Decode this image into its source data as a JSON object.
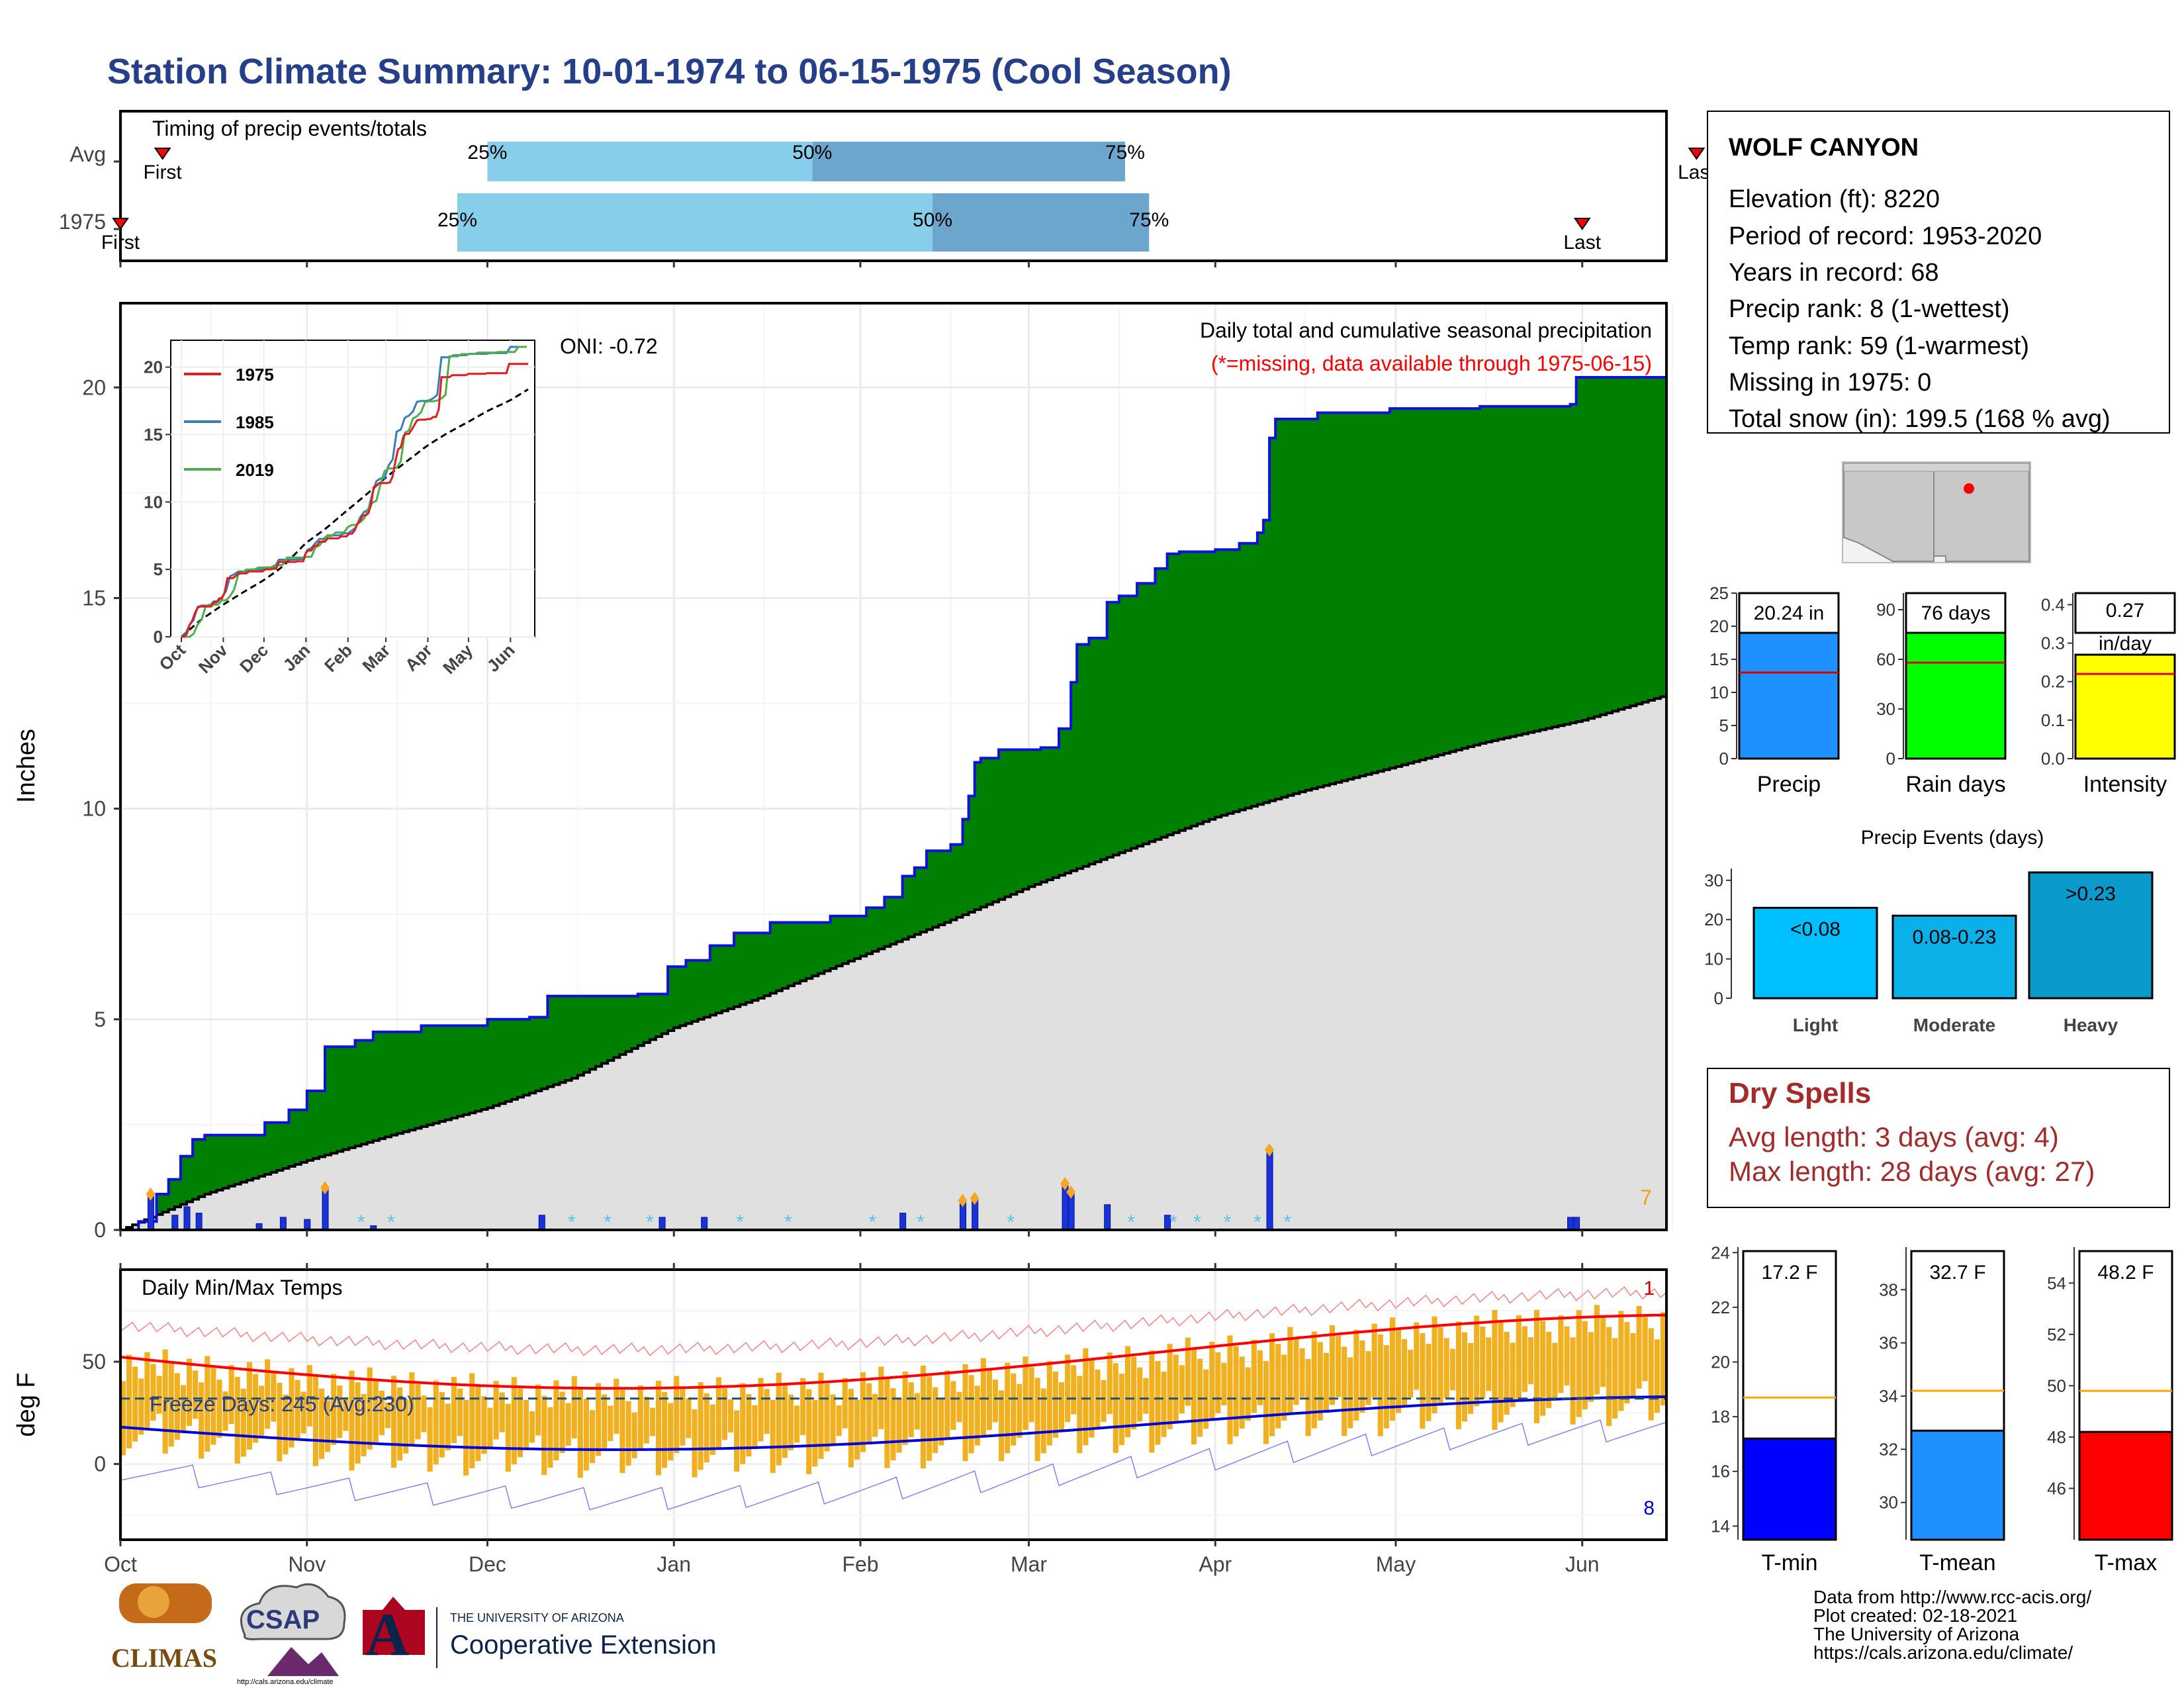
{
  "title": "Station Climate Summary: 10-01-1974 to 06-15-1975 (Cool Season)",
  "timing": {
    "label": "Timing of precip events/totals",
    "rows": [
      {
        "row": "Avg",
        "first": "First",
        "last": "Last",
        "q25": "25%",
        "q50": "50%",
        "q75": "75%",
        "first_date": "1974-10-08",
        "d25": "1974-12-01",
        "d50": "1975-01-24",
        "d75": "1975-03-17",
        "last_date": "1975-06-20"
      },
      {
        "row": "1975",
        "first": "First",
        "last": "Last",
        "q25": "25%",
        "q50": "50%",
        "q75": "75%",
        "first_date": "1974-10-01",
        "d25": "1974-11-26",
        "d50": "1975-02-13",
        "d75": "1975-03-21",
        "last_date": "1975-06-01"
      }
    ]
  },
  "station": {
    "name": "WOLF CANYON",
    "lines": [
      "Elevation (ft): 8220",
      "Period of record: 1953-2020",
      "Years in record: 68",
      "Precip rank: 8 (1-wettest)",
      "Temp rank: 59 (1-warmest)",
      "Missing in 1975: 0",
      "Total snow (in): 199.5 (168 % avg)"
    ]
  },
  "precip_panel": {
    "ylabel": "Inches",
    "oni": "ONI: -0.72",
    "caption": "Daily total and cumulative seasonal precipitation",
    "missing_note": "(*=missing, data available through 1975-06-15)",
    "corner_count": "7",
    "colors": {
      "above_avg": "#008000",
      "outline": "#1010e0",
      "avg_fill": "#e0e0e0",
      "bars": "#1a33d6"
    }
  },
  "inset": {
    "series": [
      {
        "name": "1975",
        "color": "#e41a1c"
      },
      {
        "name": "1985",
        "color": "#377eb8"
      },
      {
        "name": "2019",
        "color": "#4daf4a"
      }
    ],
    "months": [
      "Oct",
      "Nov",
      "Dec",
      "Jan",
      "Feb",
      "Mar",
      "Apr",
      "May",
      "Jun"
    ],
    "yticks": [
      "0",
      "5",
      "10",
      "15",
      "20"
    ]
  },
  "temp_panel": {
    "ylabel": "deg F",
    "title": "Daily Min/Max Temps",
    "freeze": "Freeze Days: 245 (Avg:230)",
    "max_count": "1",
    "min_count": "8"
  },
  "x_months": [
    "Oct",
    "Nov",
    "Dec",
    "Jan",
    "Feb",
    "Mar",
    "Apr",
    "May",
    "Jun"
  ],
  "small_bars": [
    {
      "label": "Precip",
      "value_label": "20.24 in",
      "value": 20.24,
      "avg": 13.0,
      "color": "#1e90ff",
      "ylim": [
        0,
        25
      ],
      "ticks": [
        "0",
        "5",
        "10",
        "15",
        "20",
        "25"
      ]
    },
    {
      "label": "Rain days",
      "value_label": "76 days",
      "value": 76,
      "avg": 58,
      "color": "#00ff00",
      "ylim": [
        0,
        100
      ],
      "ticks": [
        "0",
        "30",
        "60",
        "90"
      ]
    },
    {
      "label": "Intensity",
      "value_label": "0.27 in/day",
      "value": 0.27,
      "avg": 0.22,
      "color": "#ffff00",
      "ylim": [
        0,
        0.43
      ],
      "ticks": [
        "0.0",
        "0.1",
        "0.2",
        "0.3",
        "0.4"
      ]
    }
  ],
  "events": {
    "title": "Precip Events (days)",
    "ticks": [
      "0",
      "10",
      "20",
      "30"
    ],
    "bars": [
      {
        "label": "Light",
        "value_label": "<0.08",
        "value": 23
      },
      {
        "label": "Moderate",
        "value_label": "0.08-0.23",
        "value": 21
      },
      {
        "label": "Heavy",
        "value_label": ">0.23",
        "value": 32
      }
    ]
  },
  "dry_spells": {
    "title": "Dry Spells",
    "avg_line": "Avg length: 3 days (avg: 4)",
    "max_line": "Max length: 28 days (avg: 27)"
  },
  "temp_bars": [
    {
      "label": "T-min",
      "value_label": "17.2 F",
      "value": 17.2,
      "avg": 18.7,
      "ylim": [
        13.5,
        24.2
      ],
      "ticks": [
        "14",
        "16",
        "18",
        "20",
        "22",
        "24"
      ],
      "color": "#0000ff"
    },
    {
      "label": "T-mean",
      "value_label": "32.7 F",
      "value": 32.7,
      "avg": 34.2,
      "ylim": [
        28.6,
        39.6
      ],
      "ticks": [
        "30",
        "32",
        "34",
        "36",
        "38"
      ],
      "color": "#1e90ff"
    },
    {
      "label": "T-max",
      "value_label": "48.2 F",
      "value": 48.2,
      "avg": 49.8,
      "ylim": [
        44.0,
        55.4
      ],
      "ticks": [
        "46",
        "48",
        "50",
        "52",
        "54"
      ],
      "color": "#ff0000"
    }
  ],
  "footer": [
    "Data from http://www.rcc-acis.org/",
    "Plot created: 02-18-2021",
    "The University of Arizona",
    "https://cals.arizona.edu/climate/"
  ],
  "logos": {
    "climas": "CLIMAS",
    "csap": "CSAP",
    "csap_url": "http://cals.arizona.edu/climate",
    "ua_line1": "THE UNIVERSITY OF ARIZONA",
    "ua_line2": "Cooperative Extension",
    "ua_letter": "A"
  },
  "chart_data": {
    "type": "area",
    "title": "Daily total and cumulative seasonal precipitation",
    "ylabel": "Inches",
    "ylim": [
      0,
      22
    ],
    "x_range": [
      "1974-10-01",
      "1975-06-15"
    ],
    "cumulative_1975": [
      {
        "date": "1974-10-01",
        "value": 0.0
      },
      {
        "date": "1974-10-04",
        "value": 0.2
      },
      {
        "date": "1974-10-07",
        "value": 0.85
      },
      {
        "date": "1974-10-09",
        "value": 1.2
      },
      {
        "date": "1974-10-11",
        "value": 1.75
      },
      {
        "date": "1974-10-13",
        "value": 2.15
      },
      {
        "date": "1974-10-15",
        "value": 2.25
      },
      {
        "date": "1974-10-25",
        "value": 2.55
      },
      {
        "date": "1974-10-29",
        "value": 2.85
      },
      {
        "date": "1974-11-01",
        "value": 3.3
      },
      {
        "date": "1974-11-04",
        "value": 4.35
      },
      {
        "date": "1974-11-09",
        "value": 4.5
      },
      {
        "date": "1974-11-12",
        "value": 4.7
      },
      {
        "date": "1974-11-20",
        "value": 4.85
      },
      {
        "date": "1974-12-01",
        "value": 5.0
      },
      {
        "date": "1974-12-08",
        "value": 5.05
      },
      {
        "date": "1974-12-11",
        "value": 5.55
      },
      {
        "date": "1974-12-26",
        "value": 5.6
      },
      {
        "date": "1974-12-31",
        "value": 6.25
      },
      {
        "date": "1975-01-03",
        "value": 6.4
      },
      {
        "date": "1975-01-07",
        "value": 6.75
      },
      {
        "date": "1975-01-11",
        "value": 7.05
      },
      {
        "date": "1975-01-17",
        "value": 7.3
      },
      {
        "date": "1975-01-27",
        "value": 7.45
      },
      {
        "date": "1975-02-02",
        "value": 7.65
      },
      {
        "date": "1975-02-05",
        "value": 7.9
      },
      {
        "date": "1975-02-08",
        "value": 8.4
      },
      {
        "date": "1975-02-10",
        "value": 8.6
      },
      {
        "date": "1975-02-12",
        "value": 9.0
      },
      {
        "date": "1975-02-16",
        "value": 9.15
      },
      {
        "date": "1975-02-18",
        "value": 9.75
      },
      {
        "date": "1975-02-19",
        "value": 10.3
      },
      {
        "date": "1975-02-20",
        "value": 11.1
      },
      {
        "date": "1975-02-21",
        "value": 11.2
      },
      {
        "date": "1975-02-24",
        "value": 11.4
      },
      {
        "date": "1975-03-03",
        "value": 11.45
      },
      {
        "date": "1975-03-06",
        "value": 11.9
      },
      {
        "date": "1975-03-08",
        "value": 13.0
      },
      {
        "date": "1975-03-09",
        "value": 13.9
      },
      {
        "date": "1975-03-11",
        "value": 14.05
      },
      {
        "date": "1975-03-14",
        "value": 14.9
      },
      {
        "date": "1975-03-16",
        "value": 15.05
      },
      {
        "date": "1975-03-19",
        "value": 15.35
      },
      {
        "date": "1975-03-22",
        "value": 15.7
      },
      {
        "date": "1975-03-24",
        "value": 16.05
      },
      {
        "date": "1975-03-26",
        "value": 16.1
      },
      {
        "date": "1975-04-01",
        "value": 16.15
      },
      {
        "date": "1975-04-05",
        "value": 16.3
      },
      {
        "date": "1975-04-08",
        "value": 16.55
      },
      {
        "date": "1975-04-09",
        "value": 16.85
      },
      {
        "date": "1975-04-10",
        "value": 18.8
      },
      {
        "date": "1975-04-11",
        "value": 19.25
      },
      {
        "date": "1975-04-18",
        "value": 19.4
      },
      {
        "date": "1975-04-30",
        "value": 19.5
      },
      {
        "date": "1975-05-15",
        "value": 19.55
      },
      {
        "date": "1975-05-30",
        "value": 19.6
      },
      {
        "date": "1975-05-31",
        "value": 20.24
      },
      {
        "date": "1975-06-15",
        "value": 20.24
      }
    ],
    "cumulative_avg": [
      {
        "date": "1974-10-01",
        "value": 0.0
      },
      {
        "date": "1974-10-15",
        "value": 0.85
      },
      {
        "date": "1974-11-01",
        "value": 1.65
      },
      {
        "date": "1974-11-15",
        "value": 2.25
      },
      {
        "date": "1974-12-01",
        "value": 2.9
      },
      {
        "date": "1974-12-15",
        "value": 3.6
      },
      {
        "date": "1975-01-01",
        "value": 4.8
      },
      {
        "date": "1975-01-15",
        "value": 5.5
      },
      {
        "date": "1975-02-01",
        "value": 6.5
      },
      {
        "date": "1975-02-15",
        "value": 7.3
      },
      {
        "date": "1975-03-01",
        "value": 8.15
      },
      {
        "date": "1975-03-15",
        "value": 8.9
      },
      {
        "date": "1975-04-01",
        "value": 9.8
      },
      {
        "date": "1975-04-15",
        "value": 10.4
      },
      {
        "date": "1975-05-01",
        "value": 11.0
      },
      {
        "date": "1975-05-15",
        "value": 11.55
      },
      {
        "date": "1975-06-01",
        "value": 12.1
      },
      {
        "date": "1975-06-15",
        "value": 12.7
      }
    ],
    "daily_precip": [
      {
        "date": "1974-10-06",
        "value": 0.85
      },
      {
        "date": "1974-10-10",
        "value": 0.35
      },
      {
        "date": "1974-10-12",
        "value": 0.55
      },
      {
        "date": "1974-10-14",
        "value": 0.4
      },
      {
        "date": "1974-10-24",
        "value": 0.15
      },
      {
        "date": "1974-10-28",
        "value": 0.3
      },
      {
        "date": "1974-11-01",
        "value": 0.25
      },
      {
        "date": "1974-11-04",
        "value": 1.0
      },
      {
        "date": "1974-11-12",
        "value": 0.1
      },
      {
        "date": "1974-12-10",
        "value": 0.35
      },
      {
        "date": "1974-12-30",
        "value": 0.3
      },
      {
        "date": "1975-01-06",
        "value": 0.3
      },
      {
        "date": "1975-02-08",
        "value": 0.4
      },
      {
        "date": "1975-02-18",
        "value": 0.7
      },
      {
        "date": "1975-02-20",
        "value": 0.75
      },
      {
        "date": "1975-03-07",
        "value": 1.1
      },
      {
        "date": "1975-03-08",
        "value": 0.9
      },
      {
        "date": "1975-03-14",
        "value": 0.6
      },
      {
        "date": "1975-03-24",
        "value": 0.35
      },
      {
        "date": "1975-04-10",
        "value": 1.9
      },
      {
        "date": "1975-05-30",
        "value": 0.3
      },
      {
        "date": "1975-05-31",
        "value": 0.3
      }
    ]
  }
}
